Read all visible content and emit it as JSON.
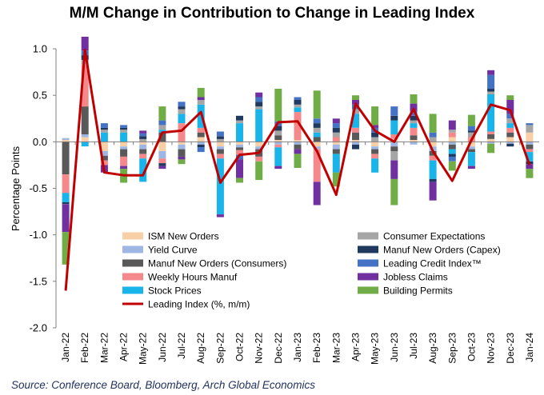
{
  "source": "Source: Conference Board, Bloomberg, Arch Global Economics",
  "chart_data": {
    "type": "bar",
    "stacked": true,
    "title": "M/M Change in Contribution to Change in Leading Index",
    "xlabel": "",
    "ylabel": "Percentage Points",
    "ylim": [
      -2.0,
      1.0
    ],
    "yticks": [
      "1.0",
      "0.5",
      "0.0",
      "-0.5",
      "-1.0",
      "-1.5",
      "-2.0"
    ],
    "categories": [
      "Jan-22",
      "Feb-22",
      "Mar-22",
      "Apr-22",
      "May-22",
      "Jun-22",
      "Jul-22",
      "Aug-22",
      "Sep-22",
      "Oct-22",
      "Nov-22",
      "Dec-22",
      "Jan-23",
      "Feb-23",
      "Mar-23",
      "Apr-23",
      "May-23",
      "Jun-23",
      "Jul-23",
      "Aug-23",
      "Sep-23",
      "Oct-23",
      "Nov-23",
      "Dec-23",
      "Jan-24"
    ],
    "tick_labels": [
      "Jan-22",
      "Feb-22",
      "Mar-22",
      "Apr-22",
      "May-22",
      "Jun-22",
      "Jul-22",
      "Aug-22",
      "Sep-22",
      "Oct-22",
      "Nov-22",
      "Dec-22",
      "Jan-23",
      "Feb-23",
      "Mar-23",
      "Apr-23",
      "May-23",
      "Jun-23",
      "Jul-23",
      "Aug-23",
      "Sep-23",
      "Oct-23",
      "Nov-23",
      "Dec-23",
      "Jan-24"
    ],
    "series": [
      {
        "name": "ISM New Orders",
        "color": "#f8cfa6",
        "values": [
          0.02,
          0.05,
          -0.1,
          -0.05,
          -0.03,
          -0.1,
          -0.03,
          0.05,
          -0.05,
          -0.03,
          -0.05,
          0.02,
          0.02,
          -0.05,
          -0.03,
          0.02,
          -0.05,
          0.03,
          0.02,
          -0.05,
          0.05,
          -0.05,
          0.03,
          0.05,
          0.1
        ]
      },
      {
        "name": "Yield Curve",
        "color": "#9db6e4",
        "values": [
          0.02,
          0.03,
          -0.05,
          -0.03,
          -0.05,
          -0.08,
          -0.05,
          -0.03,
          -0.03,
          -0.03,
          -0.03,
          -0.03,
          -0.03,
          -0.03,
          -0.05,
          -0.03,
          -0.03,
          -0.05,
          -0.03,
          -0.05,
          -0.03,
          -0.03,
          -0.02,
          -0.02,
          -0.03
        ]
      },
      {
        "name": "Manuf New Orders (Consumers)",
        "color": "#595959",
        "values": [
          -0.35,
          0.3,
          -0.05,
          -0.08,
          -0.05,
          0.1,
          -0.08,
          0.05,
          -0.05,
          -0.03,
          -0.08,
          0.05,
          -0.05,
          0.05,
          -0.05,
          0.08,
          -0.05,
          -0.05,
          0.05,
          -0.05,
          -0.05,
          -0.03,
          0.05,
          0.05,
          -0.05
        ]
      },
      {
        "name": "Weekly Hours Manuf",
        "color": "#f4888a",
        "values": [
          -0.2,
          0.45,
          -0.05,
          -0.1,
          -0.05,
          -0.05,
          0.2,
          0.05,
          -0.05,
          -0.05,
          -0.05,
          -0.03,
          0.3,
          -0.35,
          0.05,
          0.05,
          -0.05,
          0.05,
          0.08,
          -0.05,
          0.05,
          0.05,
          0.03,
          0.05,
          -0.03
        ]
      },
      {
        "name": "Stock Prices",
        "color": "#18b4ea",
        "values": [
          -0.1,
          -0.05,
          0.1,
          0.1,
          -0.25,
          0.03,
          0.1,
          0.25,
          -0.6,
          0.2,
          0.35,
          -0.2,
          0.05,
          0.05,
          -0.2,
          0.15,
          -0.15,
          0.15,
          0.05,
          -0.2,
          -0.05,
          -0.15,
          0.4,
          0.05,
          -0.1
        ]
      },
      {
        "name": "Consumer Expectations",
        "color": "#a6a6a6",
        "values": [
          0.0,
          0.05,
          0.03,
          0.03,
          0.03,
          0.05,
          0.05,
          0.05,
          0.03,
          0.03,
          0.03,
          0.05,
          0.03,
          0.05,
          0.05,
          0.05,
          0.05,
          -0.1,
          0.03,
          0.05,
          0.03,
          0.05,
          0.03,
          0.05,
          0.08
        ]
      },
      {
        "name": "Manuf New Orders (Capex)",
        "color": "#1f3a5e",
        "values": [
          -0.02,
          0.05,
          0.02,
          0.02,
          0.03,
          -0.03,
          0.03,
          -0.03,
          0.03,
          0.05,
          0.05,
          0.05,
          0.05,
          0.05,
          0.05,
          -0.05,
          0.05,
          0.05,
          0.05,
          -0.03,
          -0.03,
          0.02,
          0.03,
          -0.03,
          -0.03
        ]
      },
      {
        "name": "Leading Credit Index™",
        "color": "#4472c4",
        "values": [
          0.0,
          0.05,
          0.05,
          0.03,
          0.03,
          0.05,
          0.05,
          -0.05,
          0.05,
          -0.05,
          0.05,
          0.05,
          0.03,
          0.05,
          0.05,
          0.05,
          0.05,
          0.1,
          0.05,
          0.05,
          -0.05,
          0.05,
          0.15,
          0.05,
          0.02
        ]
      },
      {
        "name": "Jobless Claims",
        "color": "#7030a0",
        "values": [
          -0.3,
          0.15,
          -0.08,
          -0.03,
          0.03,
          -0.03,
          -0.03,
          0.03,
          -0.03,
          -0.2,
          0.05,
          -0.03,
          -0.05,
          -0.25,
          0.05,
          0.05,
          0.03,
          -0.2,
          0.08,
          -0.2,
          0.1,
          -0.03,
          0.05,
          0.15,
          -0.05
        ]
      },
      {
        "name": "Building Permits",
        "color": "#70ad47",
        "values": [
          -0.35,
          0.0,
          0.0,
          -0.15,
          0.0,
          0.15,
          -0.05,
          0.1,
          0.0,
          -0.05,
          -0.2,
          0.35,
          -0.15,
          0.3,
          -0.15,
          0.05,
          0.2,
          -0.28,
          0.1,
          0.2,
          -0.1,
          0.12,
          -0.1,
          0.05,
          -0.1
        ]
      }
    ],
    "line_series": {
      "name": "Leading Index (%, m/m)",
      "color": "#c00000",
      "values": [
        -1.6,
        0.99,
        -0.33,
        -0.36,
        -0.36,
        0.1,
        0.12,
        0.32,
        -0.44,
        -0.14,
        -0.12,
        0.21,
        0.22,
        -0.1,
        -0.57,
        0.41,
        0.12,
        0.0,
        0.35,
        -0.1,
        -0.42,
        0.02,
        0.4,
        0.34,
        -0.25
      ]
    },
    "legend": {
      "position": "bottom-center",
      "items": [
        {
          "name": "ISM New Orders",
          "color": "#f8cfa6",
          "kind": "bar"
        },
        {
          "name": "Consumer Expectations",
          "color": "#a6a6a6",
          "kind": "bar"
        },
        {
          "name": "Yield Curve",
          "color": "#9db6e4",
          "kind": "bar"
        },
        {
          "name": "Manuf New Orders (Capex)",
          "color": "#1f3a5e",
          "kind": "bar"
        },
        {
          "name": "Manuf New Orders (Consumers)",
          "color": "#595959",
          "kind": "bar"
        },
        {
          "name": "Leading Credit Index™",
          "color": "#4472c4",
          "kind": "bar"
        },
        {
          "name": "Weekly Hours Manuf",
          "color": "#f4888a",
          "kind": "bar"
        },
        {
          "name": "Jobless Claims",
          "color": "#7030a0",
          "kind": "bar"
        },
        {
          "name": "Stock Prices",
          "color": "#18b4ea",
          "kind": "bar"
        },
        {
          "name": "Building Permits",
          "color": "#70ad47",
          "kind": "bar"
        },
        {
          "name": "Leading Index (%, m/m)",
          "color": "#c00000",
          "kind": "line"
        }
      ]
    }
  }
}
